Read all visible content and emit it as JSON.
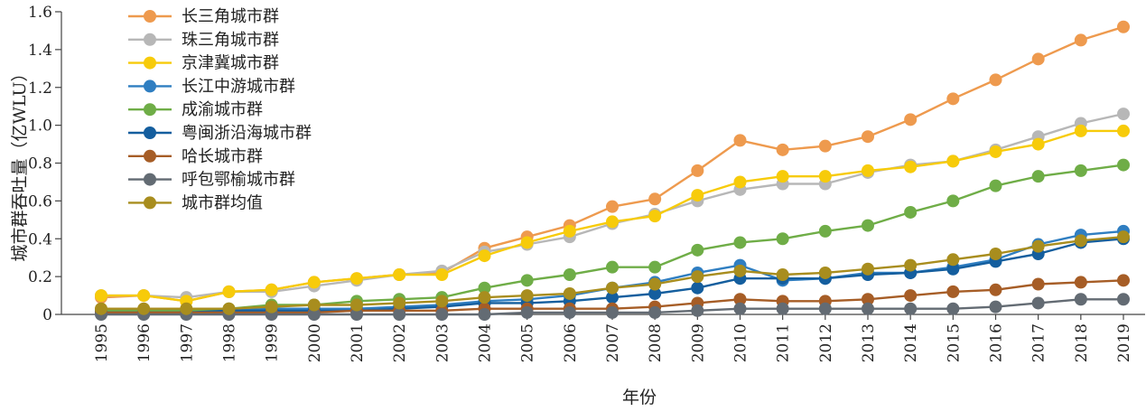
{
  "chart_data": {
    "type": "line",
    "xlabel": "年份",
    "ylabel": "城市群吞吐量（亿WLU）",
    "ylim": [
      0,
      1.6
    ],
    "yticks": [
      "0",
      "0.2",
      "0.4",
      "0.6",
      "0.8",
      "1.0",
      "1.2",
      "1.4",
      "1.6"
    ],
    "grid": false,
    "legend_position": "top-left",
    "categories": [
      "1995",
      "1996",
      "1997",
      "1998",
      "1999",
      "2000",
      "2001",
      "2002",
      "2003",
      "2004",
      "2005",
      "2006",
      "2007",
      "2008",
      "2009",
      "2010",
      "2011",
      "2012",
      "2013",
      "2014",
      "2015",
      "2016",
      "2017",
      "2018",
      "2019"
    ],
    "series": [
      {
        "name": "长三角城市群",
        "color": "#EE9A4E",
        "values": [
          0.09,
          0.1,
          0.07,
          0.12,
          0.13,
          0.17,
          0.19,
          0.21,
          0.22,
          0.35,
          0.41,
          0.47,
          0.57,
          0.61,
          0.76,
          0.92,
          0.87,
          0.89,
          0.94,
          1.03,
          1.14,
          1.24,
          1.35,
          1.45,
          1.52
        ]
      },
      {
        "name": "珠三角城市群",
        "color": "#B7B7B7",
        "values": [
          0.1,
          0.1,
          0.09,
          0.12,
          0.12,
          0.15,
          0.18,
          0.21,
          0.23,
          0.33,
          0.37,
          0.41,
          0.48,
          0.53,
          0.6,
          0.66,
          0.69,
          0.69,
          0.75,
          0.79,
          0.81,
          0.87,
          0.94,
          1.01,
          1.06
        ]
      },
      {
        "name": "京津冀城市群",
        "color": "#F7CB0A",
        "values": [
          0.1,
          0.1,
          0.07,
          0.12,
          0.13,
          0.17,
          0.19,
          0.21,
          0.21,
          0.31,
          0.38,
          0.44,
          0.49,
          0.52,
          0.63,
          0.7,
          0.73,
          0.73,
          0.76,
          0.78,
          0.81,
          0.86,
          0.9,
          0.97,
          0.97
        ]
      },
      {
        "name": "长江中游城市群",
        "color": "#2F7EC1",
        "values": [
          0.02,
          0.02,
          0.02,
          0.02,
          0.03,
          0.03,
          0.03,
          0.04,
          0.05,
          0.07,
          0.08,
          0.1,
          0.14,
          0.17,
          0.22,
          0.26,
          0.18,
          0.19,
          0.22,
          0.22,
          0.25,
          0.29,
          0.37,
          0.42,
          0.44
        ]
      },
      {
        "name": "成渝城市群",
        "color": "#6FAD47",
        "values": [
          0.02,
          0.02,
          0.02,
          0.03,
          0.05,
          0.05,
          0.07,
          0.08,
          0.09,
          0.14,
          0.18,
          0.21,
          0.25,
          0.25,
          0.34,
          0.38,
          0.4,
          0.44,
          0.47,
          0.54,
          0.6,
          0.68,
          0.73,
          0.76,
          0.79
        ]
      },
      {
        "name": "粤闽浙沿海城市群",
        "color": "#145E9E",
        "values": [
          0.01,
          0.01,
          0.01,
          0.02,
          0.02,
          0.02,
          0.02,
          0.03,
          0.04,
          0.06,
          0.06,
          0.07,
          0.09,
          0.11,
          0.14,
          0.19,
          0.19,
          0.19,
          0.21,
          0.22,
          0.24,
          0.28,
          0.32,
          0.38,
          0.4
        ]
      },
      {
        "name": "哈长城市群",
        "color": "#A65D26",
        "values": [
          0.01,
          0.01,
          0.01,
          0.01,
          0.01,
          0.01,
          0.02,
          0.02,
          0.02,
          0.03,
          0.03,
          0.03,
          0.03,
          0.04,
          0.06,
          0.08,
          0.07,
          0.07,
          0.08,
          0.1,
          0.12,
          0.13,
          0.16,
          0.17,
          0.18
        ]
      },
      {
        "name": "呼包鄂榆城市群",
        "color": "#636B73",
        "values": [
          0.0,
          0.0,
          0.0,
          0.0,
          0.0,
          0.0,
          0.0,
          0.0,
          0.0,
          0.0,
          0.01,
          0.01,
          0.01,
          0.01,
          0.02,
          0.03,
          0.03,
          0.03,
          0.03,
          0.03,
          0.03,
          0.04,
          0.06,
          0.08,
          0.08
        ]
      },
      {
        "name": "城市群均值",
        "color": "#A88D1E",
        "values": [
          0.03,
          0.03,
          0.03,
          0.03,
          0.04,
          0.05,
          0.05,
          0.06,
          0.07,
          0.09,
          0.1,
          0.11,
          0.14,
          0.16,
          0.2,
          0.23,
          0.21,
          0.22,
          0.24,
          0.26,
          0.29,
          0.32,
          0.36,
          0.39,
          0.41
        ]
      }
    ]
  }
}
